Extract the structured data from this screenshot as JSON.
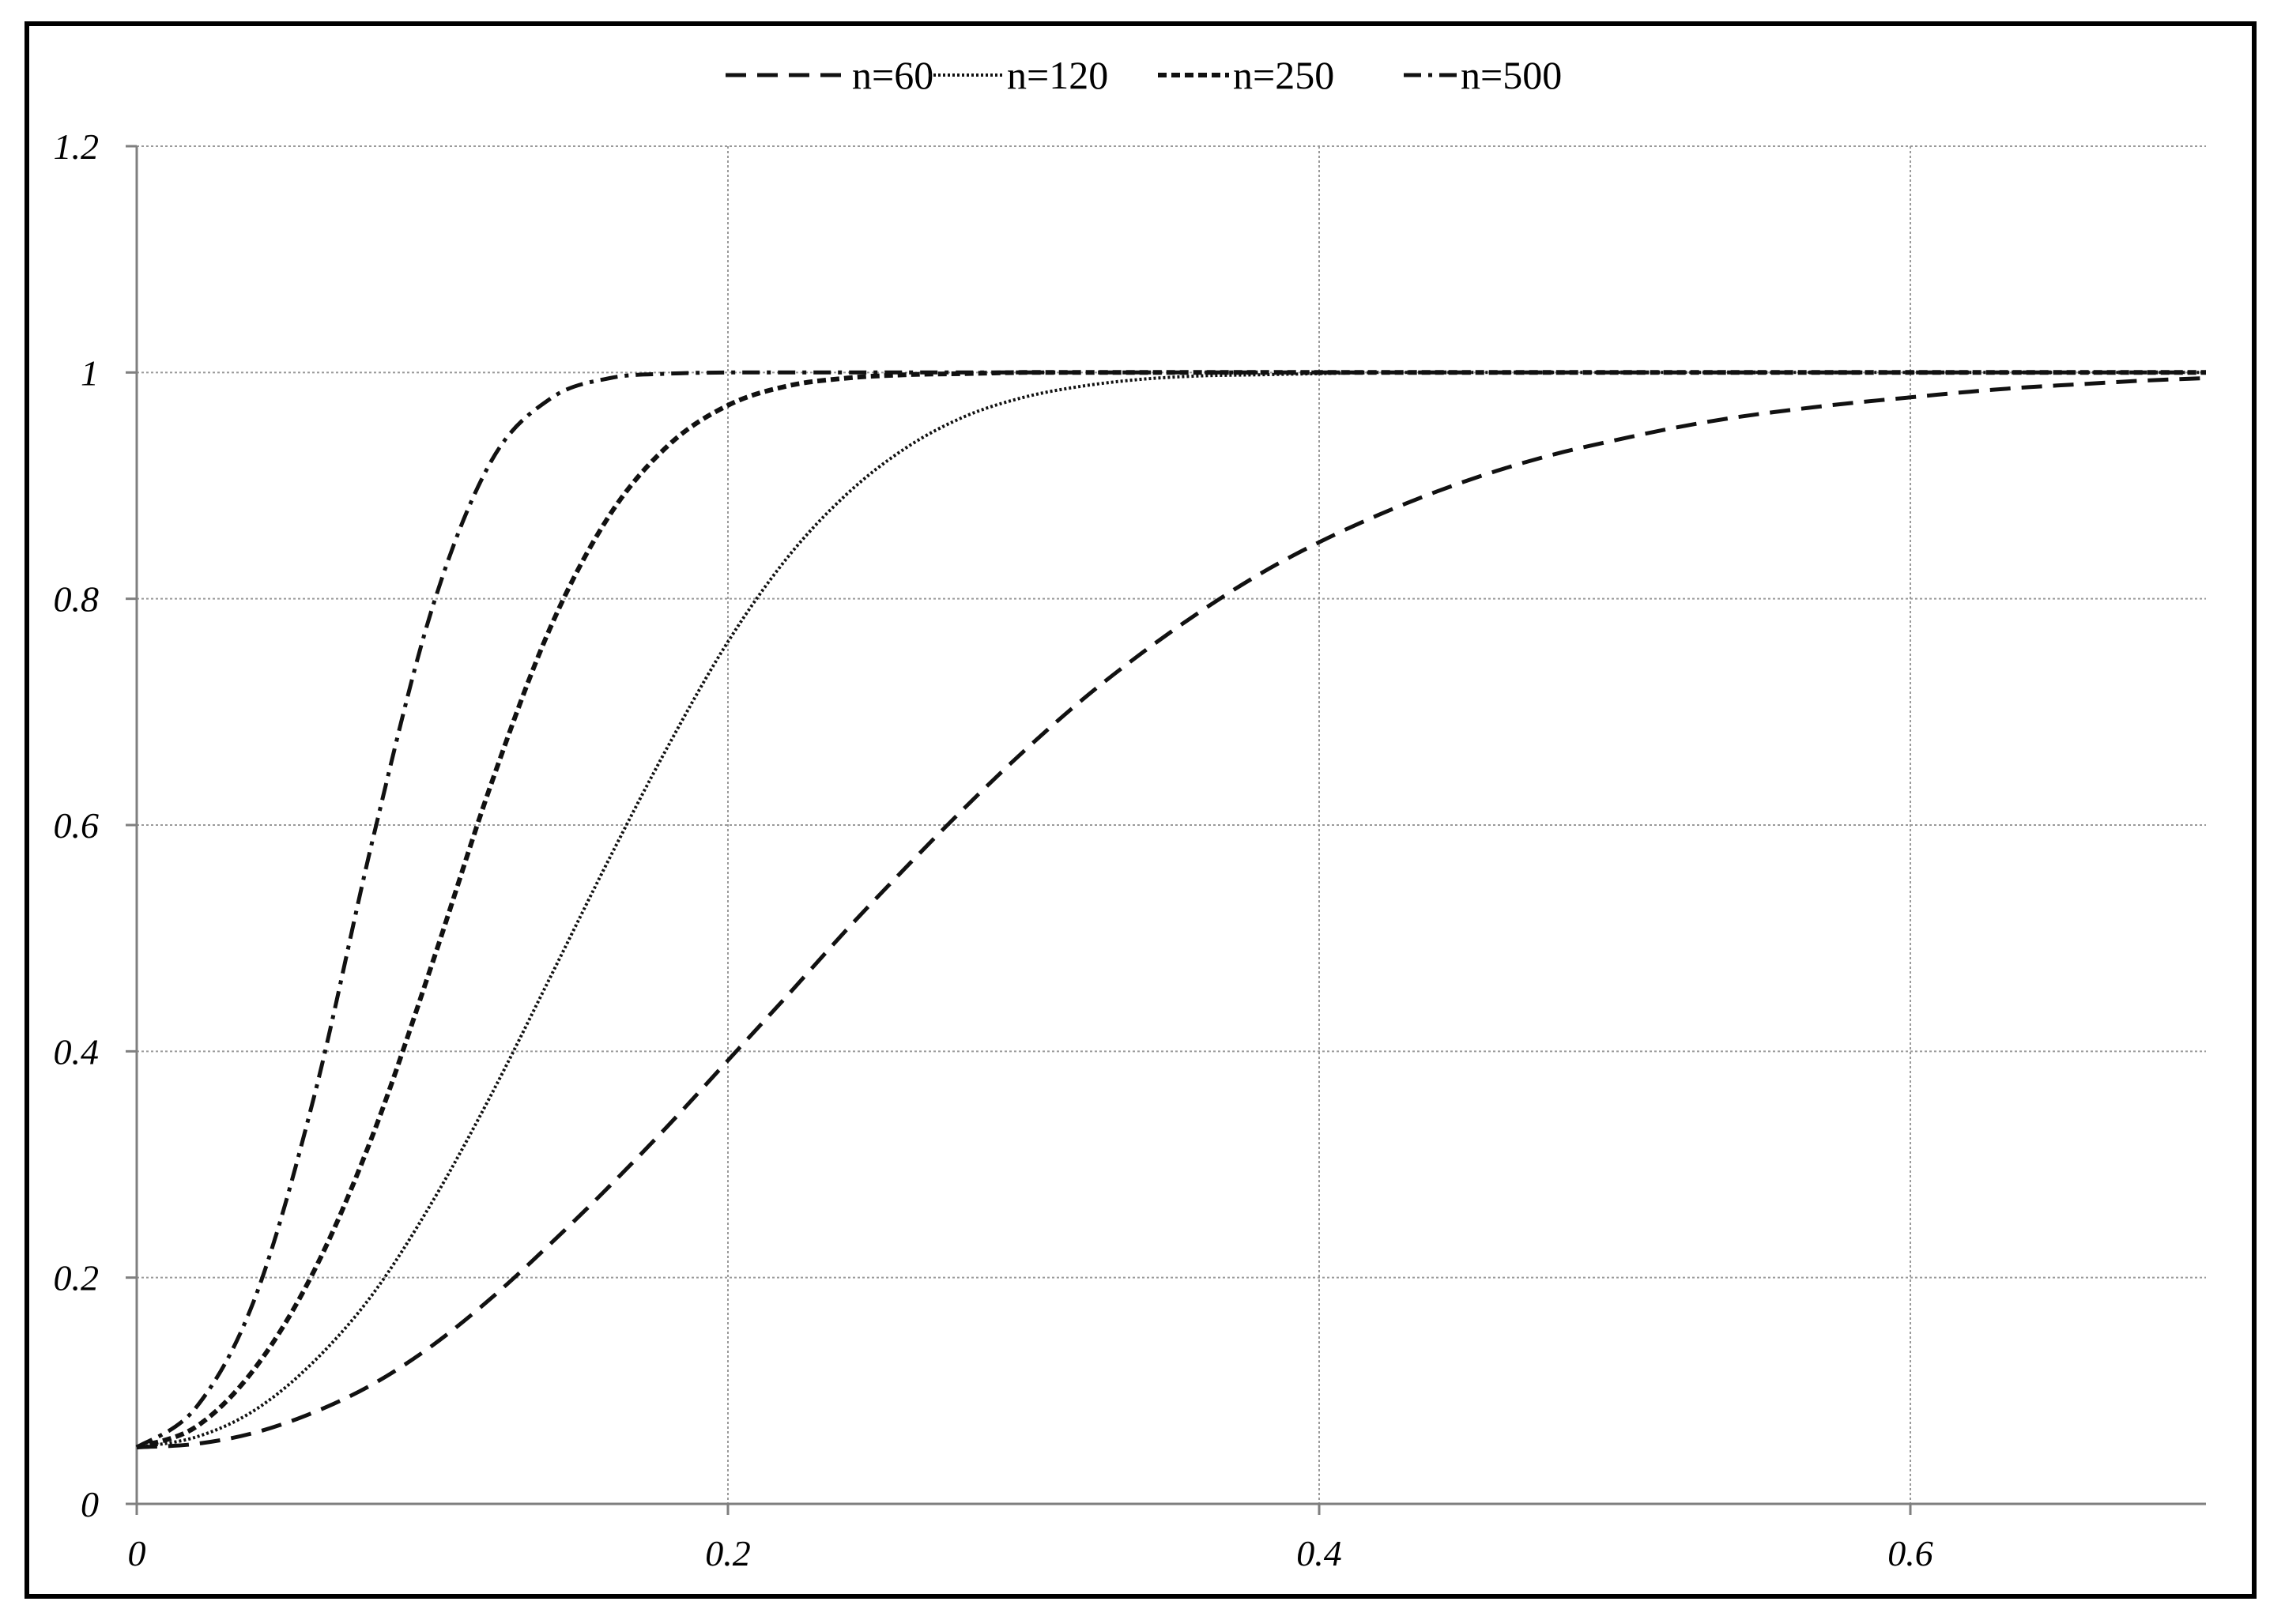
{
  "chart_data": {
    "type": "line",
    "title": "",
    "xlabel": "",
    "ylabel": "",
    "xlim": [
      0,
      0.7
    ],
    "ylim": [
      0,
      1.2
    ],
    "x_ticks": [
      0,
      0.2,
      0.4,
      0.6
    ],
    "x_tick_labels": [
      "0",
      "0.2",
      "0.4",
      "0.6"
    ],
    "y_ticks": [
      0,
      0.2,
      0.4,
      0.6,
      0.8,
      1,
      1.2
    ],
    "y_tick_labels": [
      "0",
      "0.2",
      "0.4",
      "0.6",
      "0.8",
      "1",
      "1.2"
    ],
    "grid": true,
    "legend_position": "top-center",
    "x": [
      0,
      0.02,
      0.04,
      0.06,
      0.08,
      0.1,
      0.12,
      0.14,
      0.16,
      0.18,
      0.2,
      0.22,
      0.24,
      0.26,
      0.28,
      0.3,
      0.32,
      0.34,
      0.36,
      0.38,
      0.4,
      0.42,
      0.44,
      0.46,
      0.48,
      0.5,
      0.52,
      0.54,
      0.56,
      0.58,
      0.6,
      0.62,
      0.64,
      0.66,
      0.68,
      0.7
    ],
    "series": [
      {
        "name": "n=60",
        "style": "long-dash",
        "values": [
          0.05,
          0.053,
          0.063,
          0.081,
          0.106,
          0.14,
          0.182,
          0.23,
          0.281,
          0.335,
          0.392,
          0.449,
          0.507,
          0.562,
          0.615,
          0.665,
          0.711,
          0.752,
          0.789,
          0.822,
          0.85,
          0.874,
          0.895,
          0.913,
          0.928,
          0.94,
          0.951,
          0.96,
          0.967,
          0.973,
          0.978,
          0.983,
          0.987,
          0.99,
          0.993,
          0.995
        ]
      },
      {
        "name": "n=120",
        "style": "dotted",
        "values": [
          0.05,
          0.059,
          0.083,
          0.126,
          0.186,
          0.267,
          0.362,
          0.466,
          0.571,
          0.671,
          0.762,
          0.836,
          0.892,
          0.933,
          0.961,
          0.978,
          0.988,
          0.994,
          0.997,
          0.998,
          0.999,
          1.0,
          1.0,
          1.0,
          1.0,
          1.0,
          1.0,
          1.0,
          1.0,
          1.0,
          1.0,
          1.0,
          1.0,
          1.0,
          1.0,
          1.0
        ]
      },
      {
        "name": "n=250",
        "style": "short-dash",
        "values": [
          0.05,
          0.068,
          0.12,
          0.206,
          0.327,
          0.478,
          0.637,
          0.775,
          0.874,
          0.936,
          0.971,
          0.988,
          0.995,
          0.998,
          0.999,
          1.0,
          1.0,
          1.0,
          1.0,
          1.0,
          1.0,
          1.0,
          1.0,
          1.0,
          1.0,
          1.0,
          1.0,
          1.0,
          1.0,
          1.0,
          1.0,
          1.0,
          1.0,
          1.0,
          1.0,
          1.0
        ]
      },
      {
        "name": "n=500",
        "style": "dash-dot",
        "values": [
          0.05,
          0.085,
          0.182,
          0.36,
          0.589,
          0.792,
          0.922,
          0.977,
          0.995,
          0.999,
          1.0,
          1.0,
          1.0,
          1.0,
          1.0,
          1.0,
          1.0,
          1.0,
          1.0,
          1.0,
          1.0,
          1.0,
          1.0,
          1.0,
          1.0,
          1.0,
          1.0,
          1.0,
          1.0,
          1.0,
          1.0,
          1.0,
          1.0,
          1.0,
          1.0,
          1.0
        ]
      }
    ]
  }
}
